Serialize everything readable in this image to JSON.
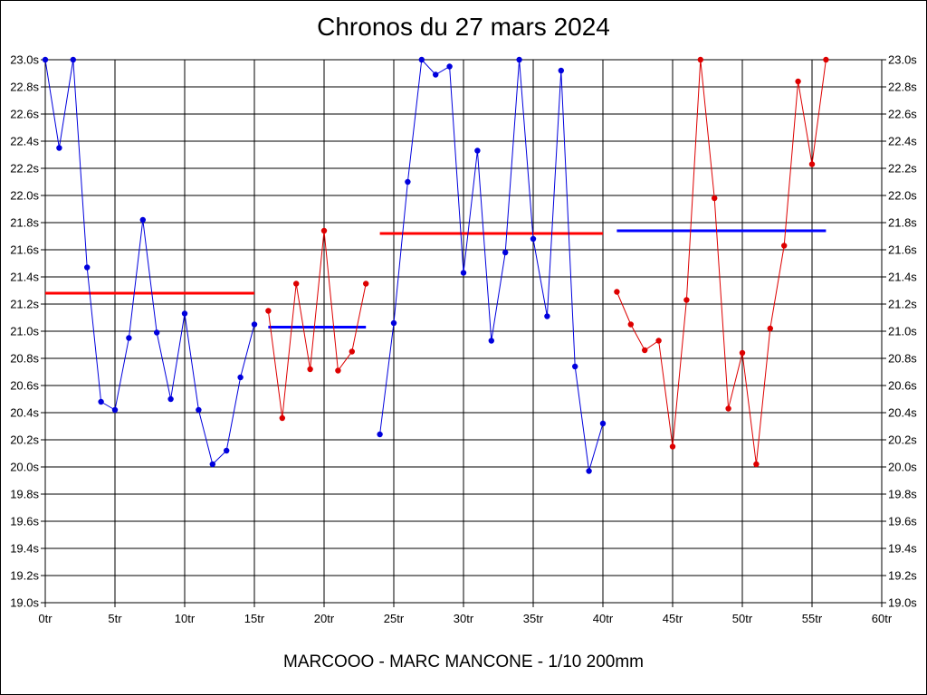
{
  "chart_data": {
    "type": "line",
    "title": "Chronos du 27 mars 2024",
    "footer": "MARCOOO - MARC MANCONE - 1/10 200mm",
    "xlim": [
      0,
      60
    ],
    "ylim": [
      19.0,
      23.0
    ],
    "x_ticks": [
      {
        "value": 0,
        "label": "0tr"
      },
      {
        "value": 5,
        "label": "5tr"
      },
      {
        "value": 10,
        "label": "10tr"
      },
      {
        "value": 15,
        "label": "15tr"
      },
      {
        "value": 20,
        "label": "20tr"
      },
      {
        "value": 25,
        "label": "25tr"
      },
      {
        "value": 30,
        "label": "30tr"
      },
      {
        "value": 35,
        "label": "35tr"
      },
      {
        "value": 40,
        "label": "40tr"
      },
      {
        "value": 45,
        "label": "45tr"
      },
      {
        "value": 50,
        "label": "50tr"
      },
      {
        "value": 55,
        "label": "55tr"
      },
      {
        "value": 60,
        "label": "60tr"
      }
    ],
    "y_ticks": [
      {
        "value": 19.0,
        "label": "19.0s"
      },
      {
        "value": 19.2,
        "label": "19.2s"
      },
      {
        "value": 19.4,
        "label": "19.4s"
      },
      {
        "value": 19.6,
        "label": "19.6s"
      },
      {
        "value": 19.8,
        "label": "19.8s"
      },
      {
        "value": 20.0,
        "label": "20.0s"
      },
      {
        "value": 20.2,
        "label": "20.2s"
      },
      {
        "value": 20.4,
        "label": "20.4s"
      },
      {
        "value": 20.6,
        "label": "20.6s"
      },
      {
        "value": 20.8,
        "label": "20.8s"
      },
      {
        "value": 21.0,
        "label": "21.0s"
      },
      {
        "value": 21.2,
        "label": "21.2s"
      },
      {
        "value": 21.4,
        "label": "21.4s"
      },
      {
        "value": 21.6,
        "label": "21.6s"
      },
      {
        "value": 21.8,
        "label": "21.8s"
      },
      {
        "value": 22.0,
        "label": "22.0s"
      },
      {
        "value": 22.2,
        "label": "22.2s"
      },
      {
        "value": 22.4,
        "label": "22.4s"
      },
      {
        "value": 22.6,
        "label": "22.6s"
      },
      {
        "value": 22.8,
        "label": "22.8s"
      },
      {
        "value": 23.0,
        "label": "23.0s"
      }
    ],
    "grid": true,
    "series": [
      {
        "color": "#0000dd",
        "x": [
          0,
          1,
          2,
          3,
          4,
          5,
          6,
          7,
          8,
          9,
          10,
          11,
          12,
          13,
          14,
          15
        ],
        "y": [
          23.0,
          22.35,
          23.0,
          21.47,
          20.48,
          20.42,
          20.95,
          21.82,
          20.99,
          20.5,
          21.13,
          20.42,
          20.02,
          20.12,
          20.66,
          21.05
        ],
        "mean": 21.28,
        "mean_color": "#ff0000"
      },
      {
        "color": "#dd0000",
        "x": [
          16,
          17,
          18,
          19,
          20,
          21,
          22,
          23
        ],
        "y": [
          21.15,
          20.36,
          21.35,
          20.72,
          21.74,
          20.71,
          20.85,
          21.35
        ],
        "mean": 21.03,
        "mean_color": "#0000ff"
      },
      {
        "color": "#0000dd",
        "x": [
          24,
          25,
          26,
          27,
          28,
          29,
          30,
          31,
          32,
          33,
          34,
          35,
          36,
          37,
          38,
          39,
          40
        ],
        "y": [
          20.24,
          21.06,
          22.1,
          23.0,
          22.89,
          22.95,
          21.43,
          22.33,
          20.93,
          21.58,
          23.0,
          21.68,
          21.11,
          22.92,
          20.74,
          19.97,
          20.32
        ],
        "mean": 21.72,
        "mean_color": "#ff0000"
      },
      {
        "color": "#dd0000",
        "x": [
          41,
          42,
          43,
          44,
          45,
          46,
          47,
          48,
          49,
          50,
          51,
          52,
          53,
          54,
          55,
          56
        ],
        "y": [
          21.29,
          21.05,
          20.86,
          20.93,
          20.15,
          21.23,
          23.0,
          21.98,
          20.43,
          20.84,
          20.02,
          21.02,
          21.63,
          22.84,
          22.23,
          23.0
        ],
        "mean": 21.74,
        "mean_color": "#0000ff"
      }
    ]
  }
}
